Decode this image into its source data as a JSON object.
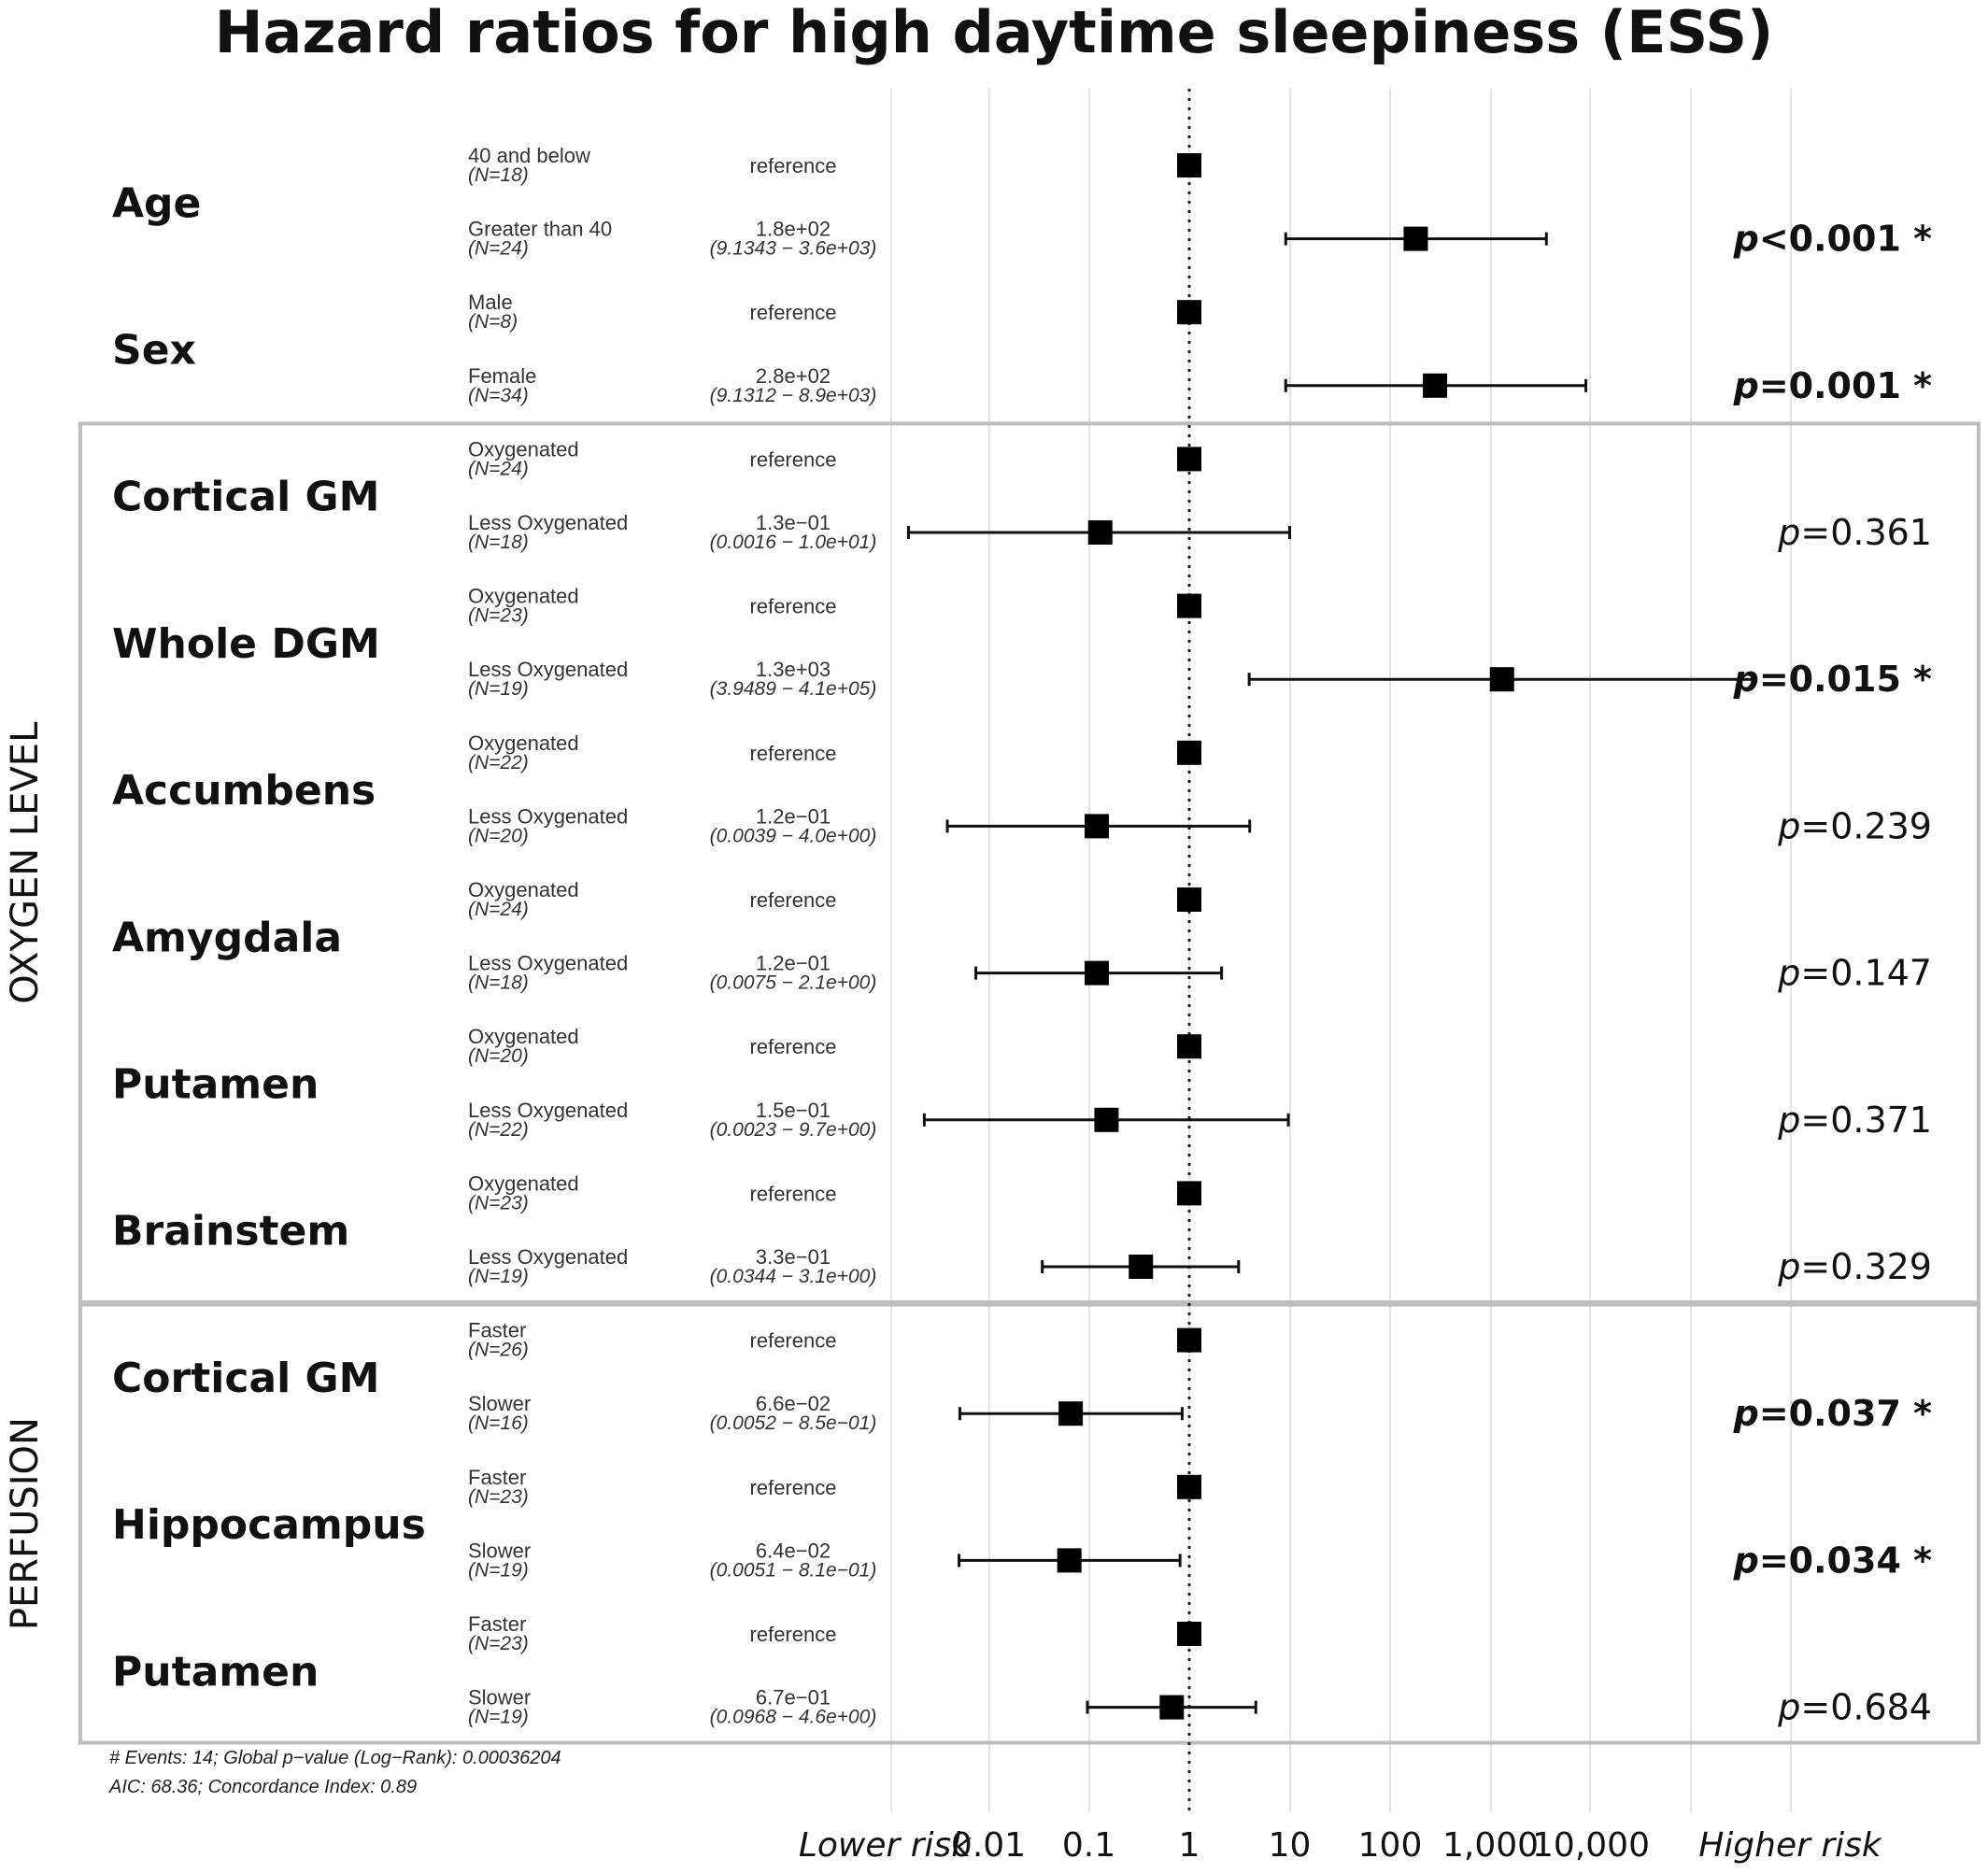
{
  "chart_data": {
    "type": "forest",
    "title": "Hazard ratios for high daytime sleepiness (ESS)",
    "x_scale": "log10",
    "xlim": [
      0.001,
      1000000
    ],
    "reference_line": 1,
    "x_ticks": [
      0.01,
      0.1,
      1,
      10,
      100,
      1000,
      10000
    ],
    "x_tick_labels": [
      "0.01",
      "0.1",
      "1",
      "10",
      "100",
      "1,000",
      "10,000"
    ],
    "lower_label": "Lower risk",
    "higher_label": "Higher risk",
    "groups": [
      {
        "label": "OXYGEN LEVEL",
        "from": 2,
        "to": 7
      },
      {
        "label": "PERFUSION",
        "from": 8,
        "to": 10
      }
    ],
    "variables": [
      {
        "name": "Age",
        "p": "<0.001",
        "sig": true,
        "rows": [
          {
            "level": "40 and below",
            "n": "(N=18)",
            "est": "reference",
            "ci": "",
            "hr": 1
          },
          {
            "level": "Greater than 40",
            "n": "(N=24)",
            "est": "1.8e+02",
            "ci": "(9.1343 − 3.6e+03)",
            "hr": 180,
            "lo": 9.1343,
            "hi": 3600
          }
        ]
      },
      {
        "name": "Sex",
        "p": "=0.001",
        "sig": true,
        "rows": [
          {
            "level": "Male",
            "n": "(N=8)",
            "est": "reference",
            "ci": "",
            "hr": 1
          },
          {
            "level": "Female",
            "n": "(N=34)",
            "est": "2.8e+02",
            "ci": "(9.1312 − 8.9e+03)",
            "hr": 280,
            "lo": 9.1312,
            "hi": 8900
          }
        ]
      },
      {
        "name": "Cortical GM",
        "p": "=0.361",
        "sig": false,
        "rows": [
          {
            "level": "Oxygenated",
            "n": "(N=24)",
            "est": "reference",
            "ci": "",
            "hr": 1
          },
          {
            "level": "Less Oxygenated",
            "n": "(N=18)",
            "est": "1.3e−01",
            "ci": "(0.0016 − 1.0e+01)",
            "hr": 0.13,
            "lo": 0.0016,
            "hi": 10
          }
        ]
      },
      {
        "name": "Whole DGM",
        "p": "=0.015",
        "sig": true,
        "rows": [
          {
            "level": "Oxygenated",
            "n": "(N=23)",
            "est": "reference",
            "ci": "",
            "hr": 1
          },
          {
            "level": "Less Oxygenated",
            "n": "(N=19)",
            "est": "1.3e+03",
            "ci": "(3.9489 − 4.1e+05)",
            "hr": 1300,
            "lo": 3.9489,
            "hi": 410000
          }
        ]
      },
      {
        "name": "Accumbens",
        "p": "=0.239",
        "sig": false,
        "rows": [
          {
            "level": "Oxygenated",
            "n": "(N=22)",
            "est": "reference",
            "ci": "",
            "hr": 1
          },
          {
            "level": "Less Oxygenated",
            "n": "(N=20)",
            "est": "1.2e−01",
            "ci": "(0.0039 − 4.0e+00)",
            "hr": 0.12,
            "lo": 0.0039,
            "hi": 4
          }
        ]
      },
      {
        "name": "Amygdala",
        "p": "=0.147",
        "sig": false,
        "rows": [
          {
            "level": "Oxygenated",
            "n": "(N=24)",
            "est": "reference",
            "ci": "",
            "hr": 1
          },
          {
            "level": "Less Oxygenated",
            "n": "(N=18)",
            "est": "1.2e−01",
            "ci": "(0.0075 − 2.1e+00)",
            "hr": 0.12,
            "lo": 0.0075,
            "hi": 2.1
          }
        ]
      },
      {
        "name": "Putamen",
        "p": "=0.371",
        "sig": false,
        "rows": [
          {
            "level": "Oxygenated",
            "n": "(N=20)",
            "est": "reference",
            "ci": "",
            "hr": 1
          },
          {
            "level": "Less Oxygenated",
            "n": "(N=22)",
            "est": "1.5e−01",
            "ci": "(0.0023 − 9.7e+00)",
            "hr": 0.15,
            "lo": 0.0023,
            "hi": 9.7
          }
        ]
      },
      {
        "name": "Brainstem",
        "p": "=0.329",
        "sig": false,
        "rows": [
          {
            "level": "Oxygenated",
            "n": "(N=23)",
            "est": "reference",
            "ci": "",
            "hr": 1
          },
          {
            "level": "Less Oxygenated",
            "n": "(N=19)",
            "est": "3.3e−01",
            "ci": "(0.0344 − 3.1e+00)",
            "hr": 0.33,
            "lo": 0.0344,
            "hi": 3.1
          }
        ]
      },
      {
        "name": "Cortical GM",
        "p": "=0.037",
        "sig": true,
        "rows": [
          {
            "level": "Faster",
            "n": "(N=26)",
            "est": "reference",
            "ci": "",
            "hr": 1
          },
          {
            "level": "Slower",
            "n": "(N=16)",
            "est": "6.6e−02",
            "ci": "(0.0052 − 8.5e−01)",
            "hr": 0.066,
            "lo": 0.0052,
            "hi": 0.85
          }
        ]
      },
      {
        "name": "Hippocampus",
        "p": "=0.034",
        "sig": true,
        "rows": [
          {
            "level": "Faster",
            "n": "(N=23)",
            "est": "reference",
            "ci": "",
            "hr": 1
          },
          {
            "level": "Slower",
            "n": "(N=19)",
            "est": "6.4e−02",
            "ci": "(0.0051 − 8.1e−01)",
            "hr": 0.064,
            "lo": 0.0051,
            "hi": 0.81
          }
        ]
      },
      {
        "name": "Putamen",
        "p": "=0.684",
        "sig": false,
        "rows": [
          {
            "level": "Faster",
            "n": "(N=23)",
            "est": "reference",
            "ci": "",
            "hr": 1
          },
          {
            "level": "Slower",
            "n": "(N=19)",
            "est": "6.7e−01",
            "ci": "(0.0968 − 4.6e+00)",
            "hr": 0.67,
            "lo": 0.0968,
            "hi": 4.6
          }
        ]
      }
    ],
    "footnote": [
      "# Events: 14; Global p−value (Log−Rank): 0.00036204",
      "AIC: 68.36; Concordance Index: 0.89"
    ]
  }
}
